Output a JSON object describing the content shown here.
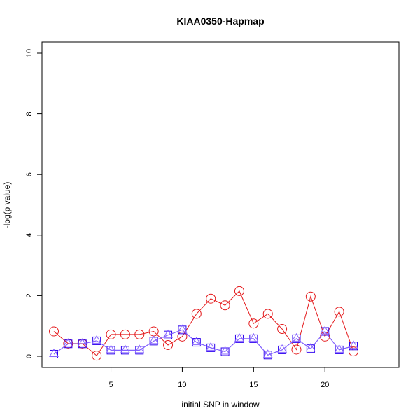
{
  "chart_data": {
    "type": "line",
    "title": "KIAA0350-Hapmap",
    "xlabel": "initial SNP in window",
    "ylabel": "-log(p value)",
    "xlim": [
      1,
      22
    ],
    "ylim": [
      0,
      10
    ],
    "x_ticks": [
      5,
      10,
      15,
      20
    ],
    "y_ticks": [
      0,
      2,
      4,
      6,
      8,
      10
    ],
    "x": [
      1,
      2,
      3,
      4,
      5,
      6,
      7,
      8,
      9,
      10,
      11,
      12,
      13,
      14,
      15,
      16,
      17,
      18,
      19,
      20,
      21,
      22
    ],
    "series": [
      {
        "color": "#e41a1c",
        "marker": "circle",
        "values": [
          0.82,
          0.42,
          0.42,
          0.02,
          0.72,
          0.72,
          0.72,
          0.82,
          0.37,
          0.65,
          1.4,
          1.9,
          1.68,
          2.15,
          1.08,
          1.4,
          0.9,
          0.22,
          1.97,
          0.65,
          1.47,
          0.16
        ]
      },
      {
        "color": "#2b00ee",
        "marker": "square",
        "values": [
          0.07,
          0.41,
          0.41,
          0.51,
          0.2,
          0.2,
          0.2,
          0.5,
          0.7,
          0.87,
          0.46,
          0.28,
          0.15,
          0.58,
          0.58,
          0.04,
          0.21,
          0.58,
          0.25,
          0.82,
          0.21,
          0.34
        ]
      },
      {
        "color": "#8866ff",
        "marker": "triangle",
        "values": [
          0.07,
          0.41,
          0.41,
          0.51,
          0.2,
          0.2,
          0.2,
          0.5,
          0.7,
          0.87,
          0.46,
          0.28,
          0.15,
          0.58,
          0.58,
          0.04,
          0.21,
          0.58,
          0.25,
          0.82,
          0.21,
          0.34
        ]
      }
    ]
  }
}
